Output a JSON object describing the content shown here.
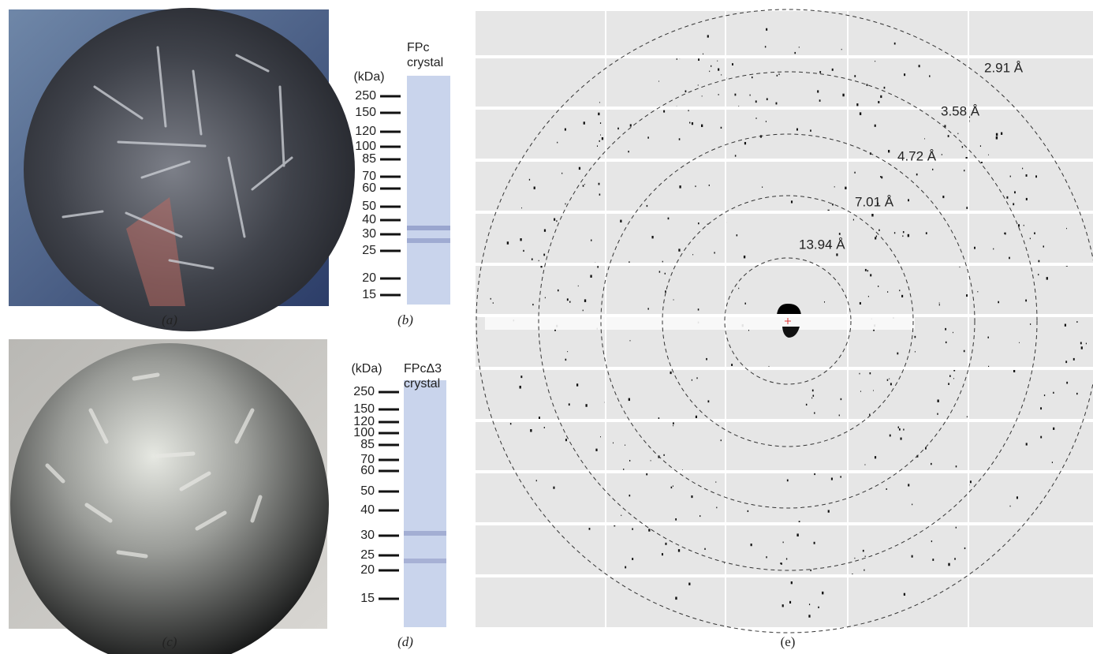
{
  "panel_a": {
    "label": "(a)"
  },
  "panel_b": {
    "label": "(b)",
    "unit": "(kDa)",
    "heading": [
      "FPc",
      "crystal"
    ],
    "markers": [
      "250",
      "150",
      "120",
      "100",
      "85",
      "70",
      "60",
      "50",
      "40",
      "30",
      "25",
      "20",
      "15"
    ]
  },
  "panel_c": {
    "label": "(c)"
  },
  "panel_d": {
    "label": "(d)",
    "unit": "(kDa)",
    "heading": [
      "FPcΔ3",
      "crystal"
    ],
    "markers": [
      "250",
      "150",
      "120",
      "100",
      "85",
      "70",
      "60",
      "50",
      "40",
      "30",
      "25",
      "20",
      "15"
    ]
  },
  "panel_e": {
    "label": "(e)",
    "rings": [
      "13.94 Å",
      "7.01 Å",
      "4.72 Å",
      "3.58 Å",
      "2.91 Å"
    ]
  }
}
